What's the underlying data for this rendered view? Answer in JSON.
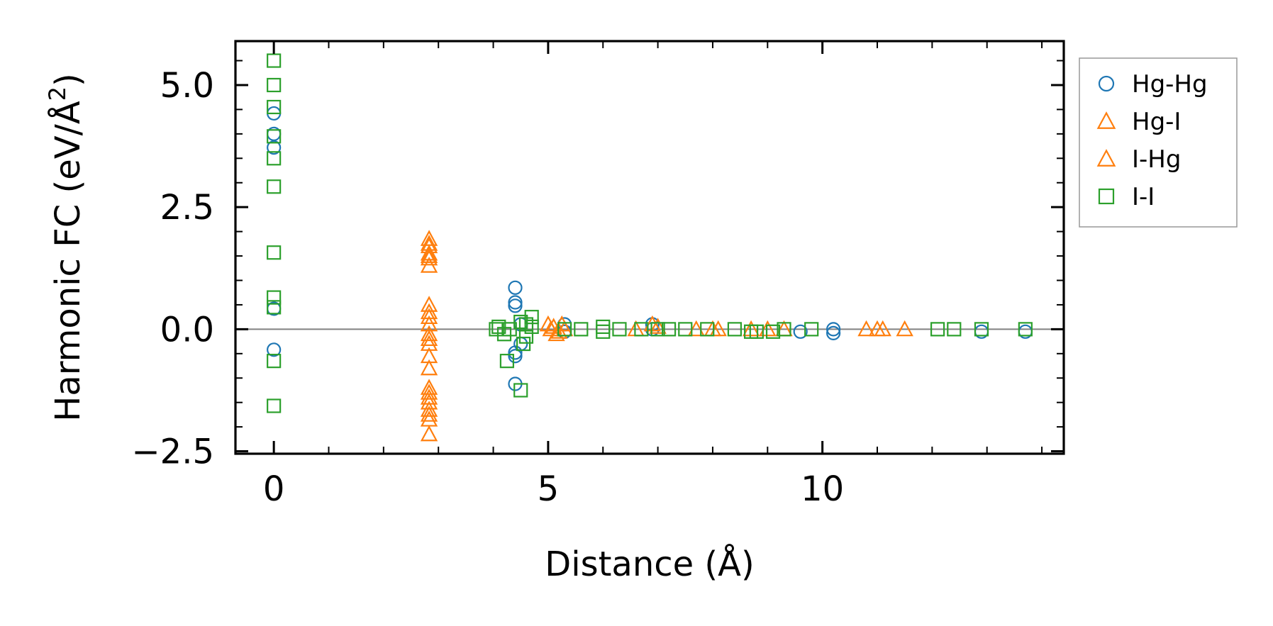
{
  "chart_data": {
    "type": "scatter",
    "title": "",
    "xlabel": "Distance (Å)",
    "ylabel": "Harmonic FC (eV/Å²)",
    "ylabel_parts": {
      "main": "Harmonic FC (eV/Å",
      "superscript": "2",
      "close": ")"
    },
    "xlim": [
      -0.7,
      14.4
    ],
    "ylim": [
      -2.55,
      5.9
    ],
    "xticks": [
      0,
      5,
      10
    ],
    "xtick_labels": [
      "0",
      "5",
      "10"
    ],
    "xminor_step": 1,
    "yticks": [
      -2.5,
      0.0,
      2.5,
      5.0
    ],
    "ytick_labels": [
      "−2.5",
      "0.0",
      "2.5",
      "5.0"
    ],
    "yminor_step": 0.5,
    "zero_line": true,
    "legend_position": "outside-right-top",
    "series": [
      {
        "name": "Hg-Hg",
        "marker": "circle",
        "color": "#1f77b4",
        "points": [
          [
            0,
            4.42
          ],
          [
            0,
            4.0
          ],
          [
            0,
            3.72
          ],
          [
            0,
            0.42
          ],
          [
            0,
            -0.42
          ],
          [
            4.4,
            0.85
          ],
          [
            4.4,
            0.55
          ],
          [
            4.4,
            0.48
          ],
          [
            4.4,
            -0.48
          ],
          [
            4.4,
            -0.55
          ],
          [
            4.4,
            -1.12
          ],
          [
            4.5,
            0.1
          ],
          [
            4.5,
            -0.3
          ],
          [
            5.3,
            0.1
          ],
          [
            5.3,
            -0.05
          ],
          [
            6.9,
            0.1
          ],
          [
            6.9,
            0.0
          ],
          [
            9.6,
            -0.05
          ],
          [
            10.2,
            0.0
          ],
          [
            10.2,
            -0.08
          ],
          [
            12.9,
            -0.05
          ],
          [
            13.7,
            -0.05
          ]
        ]
      },
      {
        "name": "Hg-I",
        "marker": "triangle",
        "color": "#ff7f0e",
        "points": [
          [
            2.83,
            1.85
          ],
          [
            2.83,
            1.7
          ],
          [
            2.83,
            1.55
          ],
          [
            2.83,
            1.45
          ],
          [
            2.83,
            1.3
          ],
          [
            2.83,
            0.5
          ],
          [
            2.83,
            0.25
          ],
          [
            2.83,
            0.1
          ],
          [
            2.83,
            -0.1
          ],
          [
            2.83,
            -0.3
          ],
          [
            2.83,
            -0.55
          ],
          [
            2.83,
            -0.8
          ],
          [
            2.83,
            -1.3
          ],
          [
            2.83,
            -1.4
          ],
          [
            2.83,
            -1.5
          ],
          [
            2.83,
            -1.65
          ],
          [
            2.83,
            -1.75
          ],
          [
            2.83,
            -2.15
          ],
          [
            5.0,
            0.1
          ],
          [
            5.1,
            0.05
          ],
          [
            5.2,
            -0.05
          ],
          [
            5.3,
            0.0
          ],
          [
            6.6,
            0.0
          ],
          [
            6.9,
            0.1
          ],
          [
            7.7,
            0.0
          ],
          [
            8.0,
            0.0
          ],
          [
            8.7,
            0.0
          ],
          [
            9.0,
            0.0
          ],
          [
            9.3,
            0.0
          ],
          [
            10.8,
            0.0
          ],
          [
            11.1,
            0.0
          ],
          [
            11.5,
            0.0
          ]
        ]
      },
      {
        "name": "I-Hg",
        "marker": "triangle",
        "color": "#ff7f0e",
        "points": [
          [
            2.83,
            1.75
          ],
          [
            2.83,
            1.5
          ],
          [
            2.83,
            0.35
          ],
          [
            2.83,
            -0.2
          ],
          [
            2.83,
            -1.2
          ],
          [
            2.83,
            -1.85
          ],
          [
            5.05,
            0.0
          ],
          [
            5.15,
            -0.1
          ],
          [
            5.25,
            0.1
          ],
          [
            7.0,
            0.05
          ],
          [
            8.1,
            0.0
          ],
          [
            11.0,
            0.0
          ]
        ]
      },
      {
        "name": "I-I",
        "marker": "square",
        "color": "#2ca02c",
        "points": [
          [
            0,
            5.5
          ],
          [
            0,
            5.0
          ],
          [
            0,
            4.55
          ],
          [
            0,
            3.95
          ],
          [
            0,
            3.5
          ],
          [
            0,
            2.92
          ],
          [
            0,
            1.57
          ],
          [
            0,
            0.65
          ],
          [
            0,
            0.45
          ],
          [
            0,
            -0.65
          ],
          [
            0,
            -1.57
          ],
          [
            4.05,
            0.0
          ],
          [
            4.1,
            0.05
          ],
          [
            4.2,
            -0.1
          ],
          [
            4.3,
            0.0
          ],
          [
            4.25,
            -0.65
          ],
          [
            4.5,
            -1.25
          ],
          [
            4.5,
            0.15
          ],
          [
            4.6,
            0.1
          ],
          [
            4.6,
            -0.15
          ],
          [
            4.7,
            0.25
          ],
          [
            4.7,
            0.05
          ],
          [
            4.55,
            -0.3
          ],
          [
            5.3,
            0.0
          ],
          [
            5.6,
            0.0
          ],
          [
            6.0,
            0.05
          ],
          [
            6.0,
            -0.05
          ],
          [
            6.3,
            0.0
          ],
          [
            6.7,
            0.0
          ],
          [
            7.0,
            0.0
          ],
          [
            7.2,
            0.0
          ],
          [
            7.5,
            0.0
          ],
          [
            7.9,
            0.0
          ],
          [
            8.4,
            0.0
          ],
          [
            8.7,
            -0.05
          ],
          [
            8.8,
            -0.05
          ],
          [
            9.1,
            -0.05
          ],
          [
            9.3,
            0.0
          ],
          [
            9.8,
            0.0
          ],
          [
            12.1,
            0.0
          ],
          [
            12.4,
            0.0
          ],
          [
            12.9,
            0.0
          ],
          [
            13.7,
            0.0
          ]
        ]
      }
    ]
  }
}
